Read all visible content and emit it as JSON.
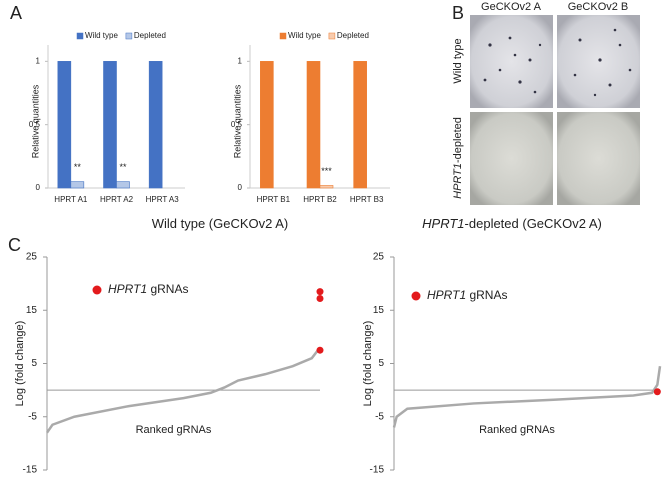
{
  "panel_labels": [
    "A",
    "B",
    "C"
  ],
  "panel_b": {
    "columns": [
      "GeCKOv2 A",
      "GeCKOv2 B"
    ],
    "rows": [
      [
        "Wild type"
      ],
      [
        "HPRT1",
        "-depleted"
      ]
    ]
  },
  "chart_data": [
    {
      "type": "bar",
      "ylabel": "Relative quantities",
      "categories": [
        "HPRT A1",
        "HPRT A2",
        "HPRT A3"
      ],
      "series": [
        {
          "name": "Wild type",
          "color": "#4472c4",
          "values": [
            1,
            1,
            1
          ]
        },
        {
          "name": "Depleted",
          "color": "#b4c7e7",
          "values": [
            0.05,
            0.05,
            0
          ]
        }
      ],
      "annotations": [
        "**",
        "**",
        null
      ],
      "ylim": [
        0,
        1.05
      ],
      "yticks": [
        0,
        0.5,
        1
      ]
    },
    {
      "type": "bar",
      "ylabel": "Relative quantities",
      "categories": [
        "HPRT B1",
        "HPRT B2",
        "HPRT B3"
      ],
      "series": [
        {
          "name": "Wild type",
          "color": "#ed7d31",
          "values": [
            1,
            1,
            1
          ]
        },
        {
          "name": "Depleted",
          "color": "#f8cbad",
          "values": [
            0,
            0.02,
            0
          ]
        }
      ],
      "annotations": [
        null,
        "***",
        null
      ],
      "ylim": [
        0,
        1.05
      ],
      "yticks": [
        0,
        0.5,
        1
      ]
    },
    {
      "type": "line",
      "title": "Wild type (GeCKOv2 A)",
      "xlabel": "Ranked gRNAs",
      "ylabel": "Log (fold change)",
      "x": [
        0,
        2,
        10,
        30,
        50,
        60,
        65,
        70,
        80,
        90,
        97,
        100
      ],
      "values": [
        -8,
        -6.5,
        -5,
        -3,
        -1.5,
        -0.5,
        0.5,
        1.8,
        3,
        4.5,
        6,
        8
      ],
      "color": "#aaaaaa",
      "highlight": {
        "name": "HPRT1",
        "name_suffix": " gRNAs",
        "color": "#e31a1c",
        "x": [
          100,
          100,
          100
        ],
        "values": [
          18.5,
          17.2,
          7.5
        ]
      },
      "xlim": [
        0,
        100
      ],
      "ylim": [
        -15,
        25
      ],
      "yticks": [
        -15,
        -5,
        5,
        15,
        25
      ]
    },
    {
      "type": "line",
      "title_italic": "HPRT1",
      "title": "-depleted (GeCKOv2 A)",
      "xlabel": "Ranked gRNAs",
      "ylabel": "Log (fold change)",
      "x": [
        0,
        1,
        5,
        30,
        60,
        90,
        97,
        99,
        100
      ],
      "values": [
        -7,
        -5,
        -3.5,
        -2.5,
        -1.8,
        -1,
        -0.5,
        1,
        4.5
      ],
      "color": "#aaaaaa",
      "highlight": {
        "name": "HPRT1",
        "name_suffix": " gRNAs",
        "color": "#e31a1c",
        "x": [
          99
        ],
        "values": [
          -0.3
        ]
      },
      "xlim": [
        0,
        100
      ],
      "ylim": [
        -15,
        25
      ],
      "yticks": [
        -15,
        -5,
        5,
        15,
        25
      ]
    }
  ]
}
